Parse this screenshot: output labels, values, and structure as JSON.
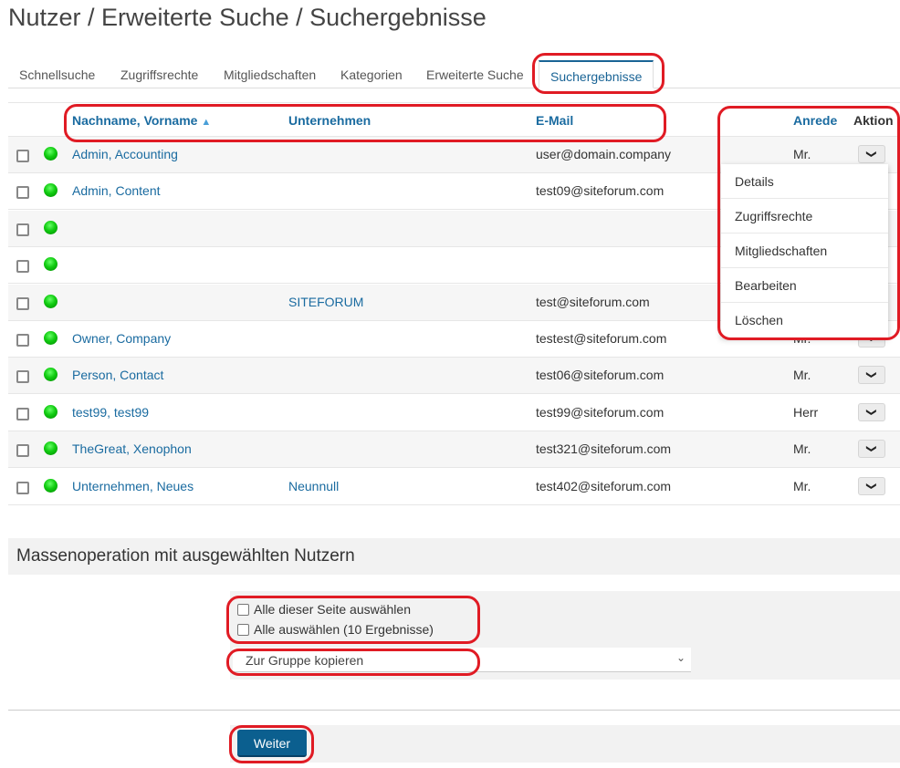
{
  "page_title": "Nutzer / Erweiterte Suche / Suchergebnisse",
  "tabs": [
    {
      "label": "Schnellsuche"
    },
    {
      "label": "Zugriffsrechte"
    },
    {
      "label": "Mitgliedschaften"
    },
    {
      "label": "Kategorien"
    },
    {
      "label": "Erweiterte Suche"
    },
    {
      "label": "Suchergebnisse",
      "active": true
    }
  ],
  "table": {
    "headers": {
      "name": "Nachname, Vorname",
      "company": "Unternehmen",
      "email": "E-Mail",
      "salutation": "Anrede",
      "action": "Aktion"
    },
    "sort": "ascending",
    "rows": [
      {
        "name": "Admin, Accounting",
        "company": "",
        "email": "user@domain.company",
        "salutation": "Mr."
      },
      {
        "name": "Admin, Content",
        "company": "",
        "email": "test09@siteforum.com",
        "salutation": ""
      },
      {
        "name": "",
        "company": "",
        "email": "",
        "salutation": ""
      },
      {
        "name": "",
        "company": "",
        "email": "",
        "salutation": ""
      },
      {
        "name": "",
        "company": "SITEFORUM",
        "email": "test@siteforum.com",
        "salutation": ""
      },
      {
        "name": "Owner, Company",
        "company": "",
        "email": "testest@siteforum.com",
        "salutation": "Mr."
      },
      {
        "name": "Person, Contact",
        "company": "",
        "email": "test06@siteforum.com",
        "salutation": "Mr."
      },
      {
        "name": "test99, test99",
        "company": "",
        "email": "test99@siteforum.com",
        "salutation": "Herr"
      },
      {
        "name": "TheGreat, Xenophon",
        "company": "",
        "email": "test321@siteforum.com",
        "salutation": "Mr."
      },
      {
        "name": "Unternehmen, Neues",
        "company": "Neunnull",
        "email": "test402@siteforum.com",
        "salutation": "Mr."
      }
    ]
  },
  "action_menu": {
    "items": [
      "Details",
      "Zugriffsrechte",
      "Mitgliedschaften",
      "Bearbeiten",
      "Löschen"
    ]
  },
  "bulk": {
    "title": "Massenoperation mit ausgewählten Nutzern",
    "select_page": "Alle dieser Seite auswählen",
    "select_all": "Alle auswählen (10 Ergebnisse)",
    "operation": "Zur Gruppe kopieren",
    "submit": "Weiter"
  },
  "colors": {
    "link": "#1a6ba0",
    "button": "#0b5f8f",
    "annotation": "#e01b24",
    "status": "#11bb11"
  }
}
